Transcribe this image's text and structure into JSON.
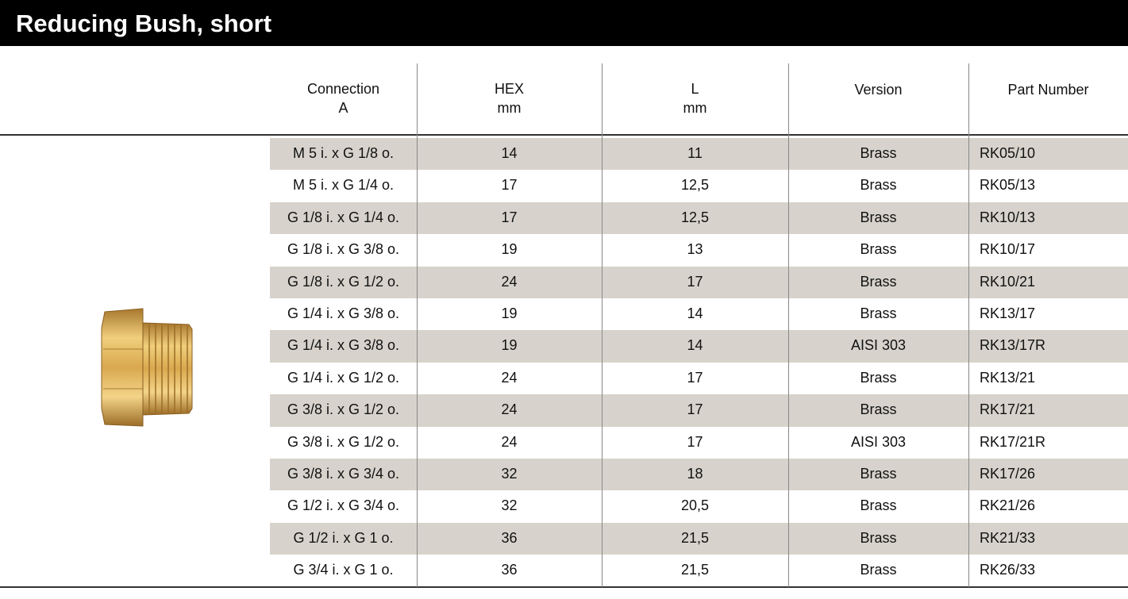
{
  "header": {
    "title": "Reducing Bush, short"
  },
  "table": {
    "columns": [
      "Connection\nA",
      "HEX\nmm",
      "L\nmm",
      "Version",
      "Part Number"
    ],
    "rows": [
      [
        "M 5 i. x G 1/8 o.",
        "14",
        "11",
        "Brass",
        "RK05/10"
      ],
      [
        "M 5 i. x G 1/4 o.",
        "17",
        "12,5",
        "Brass",
        "RK05/13"
      ],
      [
        "G 1/8 i. x G 1/4 o.",
        "17",
        "12,5",
        "Brass",
        "RK10/13"
      ],
      [
        "G 1/8 i. x G 3/8 o.",
        "19",
        "13",
        "Brass",
        "RK10/17"
      ],
      [
        "G 1/8 i. x G 1/2 o.",
        "24",
        "17",
        "Brass",
        "RK10/21"
      ],
      [
        "G 1/4 i. x G 3/8 o.",
        "19",
        "14",
        "Brass",
        "RK13/17"
      ],
      [
        "G 1/4 i. x G 3/8 o.",
        "19",
        "14",
        "AISI 303",
        "RK13/17R"
      ],
      [
        "G 1/4 i. x G 1/2 o.",
        "24",
        "17",
        "Brass",
        "RK13/21"
      ],
      [
        "G 3/8 i. x G 1/2 o.",
        "24",
        "17",
        "Brass",
        "RK17/21"
      ],
      [
        "G 3/8 i. x G 1/2 o.",
        "24",
        "17",
        "AISI 303",
        "RK17/21R"
      ],
      [
        "G 3/8 i. x G 3/4 o.",
        "32",
        "18",
        "Brass",
        "RK17/26"
      ],
      [
        "G 1/2 i. x G 3/4 o.",
        "32",
        "20,5",
        "Brass",
        "RK21/26"
      ],
      [
        "G 1/2 i. x G 1 o.",
        "36",
        "21,5",
        "Brass",
        "RK21/33"
      ],
      [
        "G 3/4 i. x G 1 o.",
        "36",
        "21,5",
        "Brass",
        "RK26/33"
      ]
    ]
  }
}
